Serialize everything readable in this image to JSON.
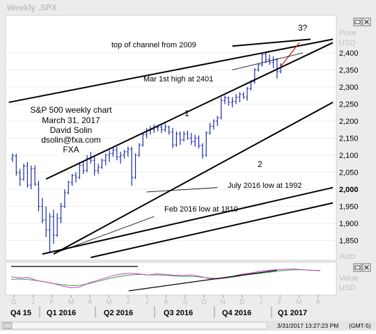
{
  "window": {
    "title": "Weekly .SPX"
  },
  "price_panel": {
    "axis_title": "Price",
    "axis_unit": "USD",
    "auto_label": "Auto",
    "highlight_tick": "2,000"
  },
  "indicator_panel": {
    "axis_title": "Value",
    "axis_unit": "USD"
  },
  "icons": {
    "restore": "restore-icon",
    "close": "close-icon"
  },
  "colors": {
    "candles": "#1c2ca8",
    "trendlines": "#000000",
    "forecast": "#e02020",
    "osc_fast": "#c040c0",
    "osc_slow": "#40a040"
  },
  "status_bar": {
    "timestamp": "3/31/2017 13:27:23 PM",
    "timezone": "(GMT-5)"
  },
  "chart_data": {
    "type": "candlestick",
    "title": "S&P 500 weekly chart",
    "info_block": [
      "S&P 500 weekly chart",
      "March 31, 2017",
      "David Solin",
      "dsolin@fxa.com",
      "FXA"
    ],
    "x_ticks": [
      "D",
      "J",
      "F",
      "M",
      "A",
      "M",
      "J",
      "J",
      "A",
      "S",
      "O",
      "N",
      "D",
      "J",
      "F",
      "M",
      "A"
    ],
    "quarters": [
      "Q4 15",
      "Q1 2016",
      "Q2 2016",
      "Q3 2016",
      "Q4 2016",
      "Q1 2017"
    ],
    "y_ticks": [
      1850,
      1900,
      1950,
      2000,
      2050,
      2100,
      2150,
      2200,
      2250,
      2300,
      2350,
      2400
    ],
    "y_tick_labels": [
      "1,850",
      "1,900",
      "1,950",
      "2,000",
      "2,050",
      "2,100",
      "2,150",
      "2,200",
      "2,250",
      "2,300",
      "2,350",
      "2,400"
    ],
    "ylim": [
      1800,
      2450
    ],
    "weekly_ohlc": [
      [
        2090,
        2105,
        2080,
        2098
      ],
      [
        2098,
        2104,
        2040,
        2050
      ],
      [
        2048,
        2060,
        2010,
        2030
      ],
      [
        2030,
        2075,
        2025,
        2068
      ],
      [
        2068,
        2080,
        2005,
        2012
      ],
      [
        2012,
        2070,
        2000,
        2060
      ],
      [
        2060,
        2070,
        2010,
        2015
      ],
      [
        2015,
        2025,
        1935,
        1950
      ],
      [
        1950,
        1975,
        1900,
        1910
      ],
      [
        1910,
        1950,
        1860,
        1880
      ],
      [
        1880,
        1930,
        1812,
        1920
      ],
      [
        1920,
        1940,
        1840,
        1865
      ],
      [
        1865,
        1930,
        1860,
        1915
      ],
      [
        1915,
        1960,
        1900,
        1950
      ],
      [
        1950,
        2000,
        1945,
        1990
      ],
      [
        1990,
        2025,
        1985,
        2020
      ],
      [
        2020,
        2045,
        2010,
        2040
      ],
      [
        2040,
        2050,
        2020,
        2035
      ],
      [
        2035,
        2080,
        2030,
        2070
      ],
      [
        2070,
        2080,
        2045,
        2055
      ],
      [
        2055,
        2100,
        2050,
        2090
      ],
      [
        2090,
        2110,
        2075,
        2085
      ],
      [
        2085,
        2095,
        2040,
        2055
      ],
      [
        2055,
        2075,
        2045,
        2065
      ],
      [
        2065,
        2090,
        2060,
        2085
      ],
      [
        2085,
        2105,
        2070,
        2100
      ],
      [
        2100,
        2115,
        2080,
        2105
      ],
      [
        2105,
        2125,
        2095,
        2115
      ],
      [
        2115,
        2125,
        2085,
        2095
      ],
      [
        2095,
        2110,
        2075,
        2100
      ],
      [
        2100,
        2115,
        2090,
        2110
      ],
      [
        2110,
        2125,
        2095,
        2118
      ],
      [
        2118,
        2125,
        2010,
        2035
      ],
      [
        2035,
        2105,
        2030,
        2100
      ],
      [
        2100,
        2135,
        2095,
        2130
      ],
      [
        2130,
        2165,
        2125,
        2160
      ],
      [
        2160,
        2180,
        2150,
        2172
      ],
      [
        2172,
        2185,
        2160,
        2175
      ],
      [
        2175,
        2190,
        2165,
        2180
      ],
      [
        2180,
        2188,
        2170,
        2182
      ],
      [
        2182,
        2192,
        2165,
        2175
      ],
      [
        2175,
        2193,
        2168,
        2183
      ],
      [
        2183,
        2186,
        2160,
        2168
      ],
      [
        2168,
        2180,
        2120,
        2130
      ],
      [
        2130,
        2170,
        2125,
        2162
      ],
      [
        2162,
        2170,
        2130,
        2145
      ],
      [
        2145,
        2170,
        2140,
        2162
      ],
      [
        2162,
        2172,
        2145,
        2150
      ],
      [
        2150,
        2165,
        2130,
        2140
      ],
      [
        2140,
        2160,
        2125,
        2150
      ],
      [
        2150,
        2158,
        2120,
        2128
      ],
      [
        2128,
        2135,
        2090,
        2100
      ],
      [
        2100,
        2170,
        2095,
        2165
      ],
      [
        2165,
        2195,
        2160,
        2185
      ],
      [
        2185,
        2205,
        2175,
        2200
      ],
      [
        2200,
        2215,
        2185,
        2210
      ],
      [
        2210,
        2270,
        2205,
        2260
      ],
      [
        2260,
        2275,
        2250,
        2268
      ],
      [
        2268,
        2272,
        2245,
        2255
      ],
      [
        2255,
        2270,
        2240,
        2258
      ],
      [
        2258,
        2280,
        2250,
        2270
      ],
      [
        2270,
        2285,
        2255,
        2278
      ],
      [
        2278,
        2285,
        2265,
        2270
      ],
      [
        2270,
        2300,
        2260,
        2295
      ],
      [
        2295,
        2320,
        2290,
        2315
      ],
      [
        2315,
        2355,
        2310,
        2350
      ],
      [
        2350,
        2370,
        2345,
        2365
      ],
      [
        2365,
        2400,
        2360,
        2395
      ],
      [
        2395,
        2401,
        2370,
        2380
      ],
      [
        2380,
        2395,
        2365,
        2372
      ],
      [
        2372,
        2390,
        2355,
        2380
      ],
      [
        2380,
        2385,
        2325,
        2345
      ],
      [
        2345,
        2370,
        2340,
        2365
      ]
    ],
    "trendlines": [
      {
        "from": [
          -1,
          2255
        ],
        "to": [
          86,
          2440
        ]
      },
      {
        "from": [
          9,
          2030
        ],
        "to": [
          86,
          2430
        ]
      },
      {
        "from": [
          11,
          1810
        ],
        "to": [
          86,
          2255
        ]
      },
      {
        "from": [
          8,
          1810
        ],
        "to": [
          86,
          2005
        ]
      },
      {
        "from": [
          21,
          1800
        ],
        "to": [
          86,
          1960
        ]
      },
      {
        "from": [
          59,
          2420
        ],
        "to": [
          80,
          2440
        ]
      }
    ],
    "forecast_line": {
      "from": [
        72,
        2360
      ],
      "to": [
        77,
        2430
      ]
    },
    "annotations": [
      {
        "text": "top of channel from 2009",
        "leader": null
      },
      {
        "text": "Mar 1st high at 2401",
        "leader": {
          "from": [
            59,
            2350
          ],
          "to": [
            78,
            2400
          ]
        }
      },
      {
        "text": "July 2016 low at 1992",
        "leader": {
          "from": [
            36,
            1992
          ],
          "to": [
            55,
            2005
          ]
        }
      },
      {
        "text": "Feb 2016 low at 1810",
        "leader": {
          "from": [
            12,
            1815
          ],
          "to": [
            38,
            1920
          ]
        }
      },
      {
        "text": "1",
        "leader": null
      },
      {
        "text": "2",
        "leader": null
      },
      {
        "text": "3?",
        "leader": null
      }
    ],
    "oscillator": {
      "fast": [
        0.55,
        0.5,
        0.52,
        0.4,
        0.35,
        0.28,
        0.18,
        0.12,
        0.15,
        0.3,
        0.4,
        0.5,
        0.6,
        0.66,
        0.68,
        0.65,
        0.62,
        0.66,
        0.64,
        0.6,
        0.6,
        0.62,
        0.56,
        0.48,
        0.46,
        0.5,
        0.58,
        0.66,
        0.7,
        0.76,
        0.8,
        0.82,
        0.84,
        0.85,
        0.82,
        0.8,
        0.78
      ],
      "slow": [
        0.45,
        0.46,
        0.44,
        0.4,
        0.34,
        0.28,
        0.24,
        0.2,
        0.22,
        0.28,
        0.36,
        0.44,
        0.52,
        0.58,
        0.62,
        0.64,
        0.62,
        0.62,
        0.6,
        0.58,
        0.56,
        0.56,
        0.54,
        0.5,
        0.48,
        0.5,
        0.54,
        0.6,
        0.64,
        0.68,
        0.72,
        0.76,
        0.8,
        0.82,
        0.82,
        0.8,
        0.79
      ],
      "trendlines": [
        {
          "from": [
            0.0,
            0.95
          ],
          "to": [
            0.41,
            0.95
          ]
        },
        {
          "from": [
            0.38,
            0.0
          ],
          "to": [
            0.86,
            0.8
          ]
        }
      ]
    }
  }
}
